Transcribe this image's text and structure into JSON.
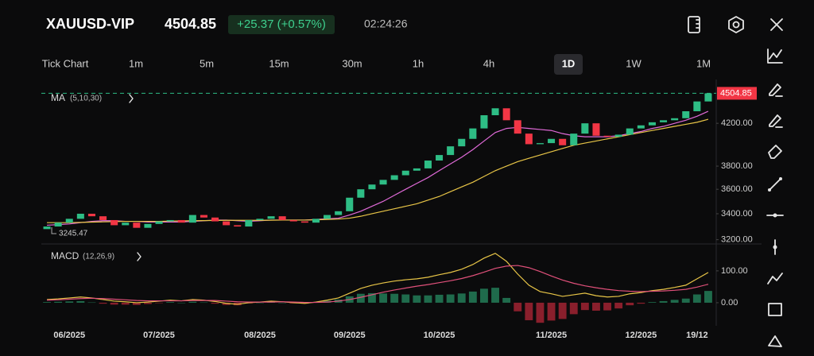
{
  "header": {
    "symbol": "XAUUSD-VIP",
    "price": "4504.85",
    "change": "+25.37 (+0.57%)",
    "time": "02:24:26"
  },
  "timeframes": [
    "Tick Chart",
    "1m",
    "5m",
    "15m",
    "30m",
    "1h",
    "4h",
    "1D",
    "1W",
    "1M"
  ],
  "chart_data": [
    {
      "type": "candlestick",
      "indicator": "MA",
      "indicator_params": "(5,10,30)",
      "categories": [
        null,
        null,
        "06/2025",
        null,
        null,
        null,
        null,
        null,
        null,
        null,
        "07/2025",
        null,
        null,
        null,
        null,
        null,
        null,
        null,
        null,
        "08/2025",
        null,
        null,
        null,
        null,
        null,
        null,
        null,
        "09/2025",
        null,
        null,
        null,
        null,
        null,
        null,
        null,
        "10/2025",
        null,
        null,
        null,
        null,
        null,
        null,
        null,
        null,
        null,
        "11/2025",
        null,
        null,
        null,
        null,
        null,
        null,
        null,
        "12/2025",
        null,
        null,
        null,
        null,
        "19/12",
        null
      ],
      "open": [
        3280,
        3300,
        3330,
        3360,
        3400,
        3380,
        3350,
        3310,
        3330,
        3290,
        3320,
        3340,
        3350,
        3330,
        3390,
        3370,
        3340,
        3310,
        3300,
        3350,
        3360,
        3380,
        3350,
        3340,
        3330,
        3360,
        3390,
        3420,
        3530,
        3600,
        3640,
        3680,
        3720,
        3760,
        3780,
        3850,
        3900,
        3980,
        4050,
        4150,
        4280,
        4350,
        4230,
        4100,
        4000,
        4010,
        4050,
        3990,
        4100,
        4200,
        4080,
        4070,
        4090,
        4150,
        4180,
        4210,
        4230,
        4250,
        4320,
        4420
      ],
      "close": [
        3300,
        3330,
        3360,
        3400,
        3380,
        3350,
        3310,
        3330,
        3290,
        3320,
        3340,
        3350,
        3330,
        3390,
        3370,
        3340,
        3310,
        3300,
        3350,
        3360,
        3380,
        3350,
        3340,
        3330,
        3360,
        3390,
        3420,
        3530,
        3600,
        3640,
        3680,
        3720,
        3760,
        3780,
        3850,
        3900,
        3980,
        4050,
        4150,
        4280,
        4350,
        4230,
        4100,
        4000,
        4010,
        4050,
        3990,
        4100,
        4200,
        4080,
        4070,
        4090,
        4150,
        4180,
        4210,
        4230,
        4250,
        4320,
        4420,
        4504.85
      ],
      "up_color": "#2ebd85",
      "down_color": "#f23645",
      "series": [
        {
          "color": "#e06ad8",
          "values": [
            3310,
            3315,
            3320,
            3330,
            3340,
            3345,
            3345,
            3340,
            3340,
            3335,
            3335,
            3335,
            3335,
            3340,
            3345,
            3350,
            3350,
            3345,
            3340,
            3345,
            3350,
            3350,
            3350,
            3350,
            3355,
            3360,
            3365,
            3390,
            3420,
            3460,
            3500,
            3550,
            3600,
            3650,
            3700,
            3760,
            3820,
            3880,
            3950,
            4030,
            4110,
            4150,
            4160,
            4150,
            4140,
            4130,
            4100,
            4080,
            4070,
            4070,
            4070,
            4080,
            4100,
            4120,
            4150,
            4170,
            4200,
            4230,
            4270,
            4320
          ]
        },
        {
          "color": "#e8c547",
          "values": [
            3330,
            3330,
            3330,
            3332,
            3334,
            3336,
            3338,
            3340,
            3340,
            3340,
            3340,
            3342,
            3344,
            3345,
            3346,
            3347,
            3348,
            3348,
            3348,
            3348,
            3349,
            3350,
            3350,
            3350,
            3352,
            3355,
            3358,
            3365,
            3380,
            3400,
            3420,
            3440,
            3460,
            3480,
            3510,
            3540,
            3580,
            3620,
            3660,
            3710,
            3760,
            3800,
            3840,
            3870,
            3900,
            3930,
            3960,
            3990,
            4010,
            4030,
            4050,
            4070,
            4090,
            4110,
            4130,
            4150,
            4170,
            4190,
            4210,
            4240
          ]
        }
      ],
      "last_price": 4504.85,
      "last_price_color": "#f23645",
      "low_label": 3245.47,
      "log_scale": true,
      "ylim": [
        3180,
        4610
      ],
      "yticks": [
        {
          "value": 3200,
          "label": "3200.00"
        },
        {
          "value": 3400,
          "label": "3400.00"
        },
        {
          "value": 3600,
          "label": "3600.00"
        },
        {
          "value": 3800,
          "label": "3800.00"
        },
        {
          "value": 4200,
          "label": "4200.00"
        }
      ]
    },
    {
      "type": "macd",
      "indicator": "MACD",
      "indicator_params": "(12,26,9)",
      "series": [
        {
          "color": "#e8c547",
          "values": [
            10,
            12,
            15,
            18,
            15,
            10,
            5,
            3,
            0,
            2,
            5,
            8,
            6,
            10,
            8,
            4,
            -2,
            -5,
            0,
            2,
            5,
            3,
            0,
            -2,
            2,
            8,
            15,
            30,
            45,
            55,
            62,
            68,
            72,
            75,
            80,
            88,
            95,
            105,
            120,
            140,
            155,
            130,
            90,
            55,
            35,
            28,
            20,
            25,
            30,
            22,
            18,
            20,
            28,
            32,
            38,
            42,
            48,
            55,
            75,
            95
          ]
        },
        {
          "color": "#e0507a",
          "values": [
            8,
            9,
            11,
            13,
            14,
            13,
            11,
            9,
            7,
            6,
            6,
            6,
            6,
            7,
            7,
            7,
            5,
            3,
            2,
            2,
            2,
            3,
            2,
            1,
            1,
            2,
            5,
            10,
            17,
            25,
            33,
            40,
            46,
            52,
            57,
            63,
            69,
            76,
            85,
            96,
            108,
            115,
            117,
            110,
            98,
            84,
            71,
            61,
            53,
            47,
            42,
            38,
            36,
            35,
            36,
            37,
            39,
            42,
            49,
            58
          ]
        }
      ],
      "histogram": [
        2,
        3,
        4,
        5,
        1,
        -3,
        -6,
        -6,
        -7,
        -4,
        -1,
        2,
        0,
        3,
        1,
        -3,
        -7,
        -8,
        -2,
        0,
        3,
        0,
        -2,
        -3,
        1,
        6,
        10,
        20,
        28,
        30,
        29,
        28,
        26,
        23,
        23,
        25,
        26,
        29,
        35,
        44,
        47,
        15,
        -27,
        -55,
        -63,
        -56,
        -51,
        -36,
        -23,
        -25,
        -24,
        -18,
        -8,
        -3,
        2,
        5,
        9,
        13,
        26,
        37
      ],
      "hist_up_color": "#1f6b4c",
      "hist_down_color": "#8a1f2c",
      "ylim": [
        -65,
        172
      ],
      "yticks": [
        {
          "value": 0,
          "label": "0.00"
        },
        {
          "value": 100,
          "label": "100.00"
        }
      ]
    }
  ]
}
